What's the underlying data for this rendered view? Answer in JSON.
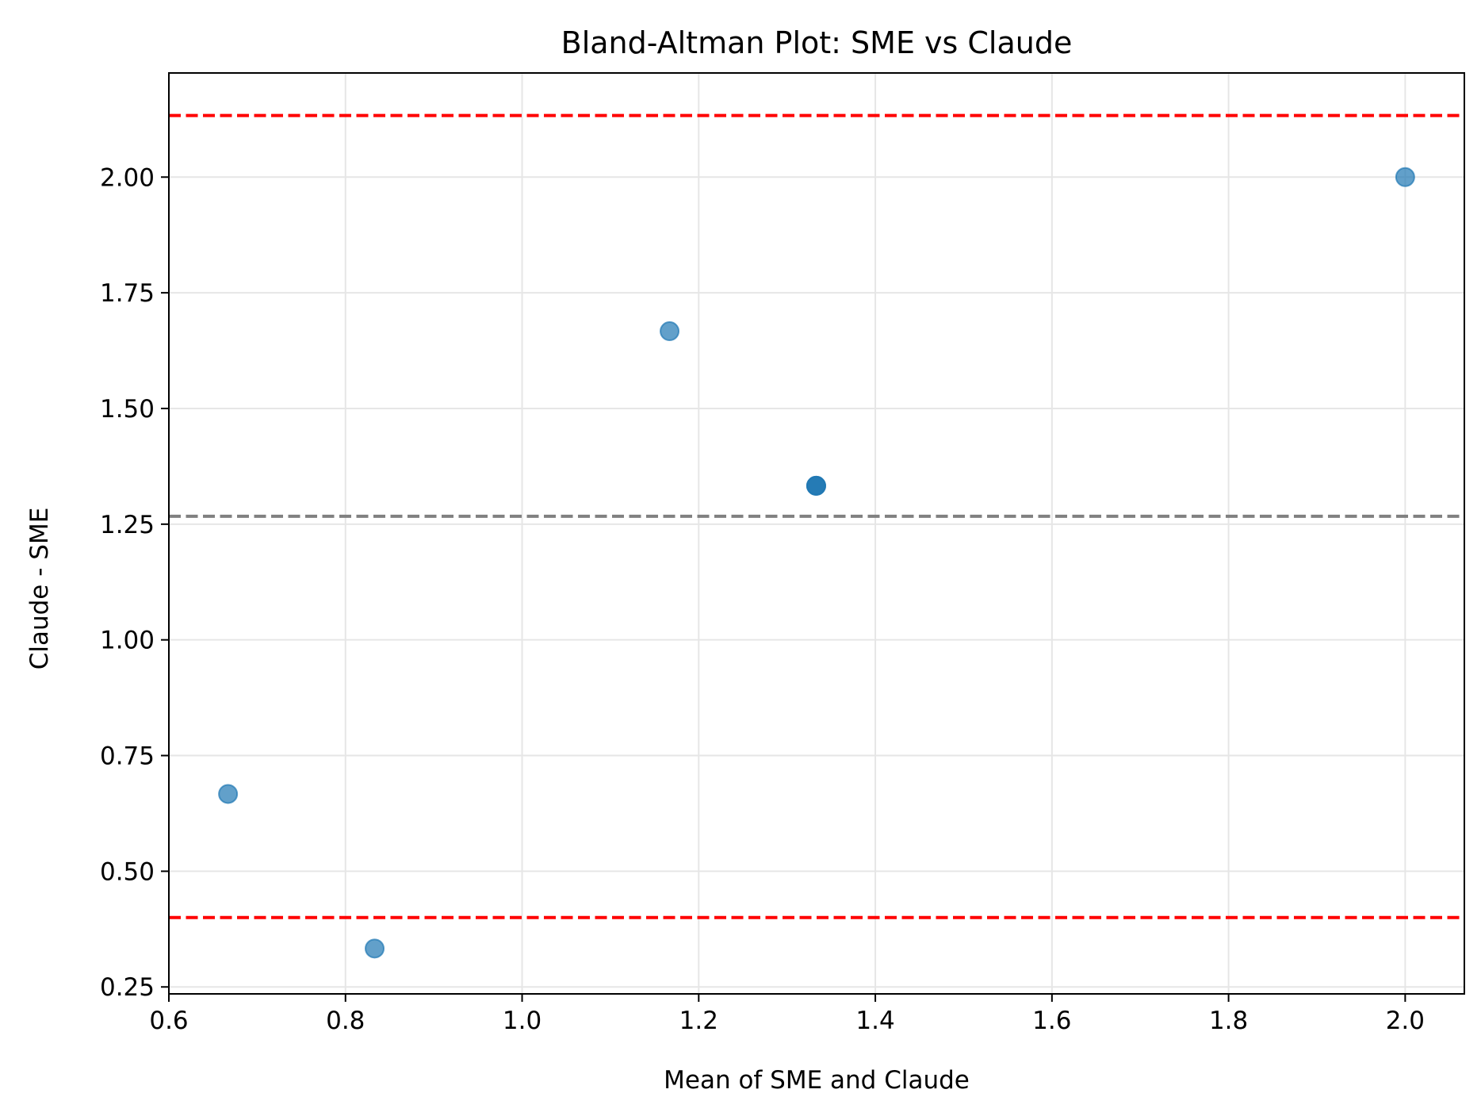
{
  "chart_data": {
    "type": "scatter",
    "title": "Bland-Altman Plot: SME vs Claude",
    "xlabel": "Mean of SME and Claude",
    "ylabel": "Claude - SME",
    "xlim": [
      0.6,
      2.067
    ],
    "ylim": [
      0.235,
      2.225
    ],
    "xticks": [
      0.6,
      0.8,
      1.0,
      1.2,
      1.4,
      1.6,
      1.8,
      2.0
    ],
    "xtick_labels": [
      "0.6",
      "0.8",
      "1.0",
      "1.2",
      "1.4",
      "1.6",
      "1.8",
      "2.0"
    ],
    "yticks": [
      0.25,
      0.5,
      0.75,
      1.0,
      1.25,
      1.5,
      1.75,
      2.0
    ],
    "ytick_labels": [
      "0.25",
      "0.50",
      "0.75",
      "1.00",
      "1.25",
      "1.50",
      "1.75",
      "2.00"
    ],
    "grid": true,
    "points": [
      {
        "x": 0.667,
        "y": 0.667
      },
      {
        "x": 0.833,
        "y": 0.333
      },
      {
        "x": 1.167,
        "y": 1.667
      },
      {
        "x": 1.333,
        "y": 1.333
      },
      {
        "x": 1.333,
        "y": 1.333
      },
      {
        "x": 1.333,
        "y": 1.333
      },
      {
        "x": 2.0,
        "y": 2.0
      }
    ],
    "reference_lines": [
      {
        "kind": "mean_difference",
        "y": 1.267,
        "color": "#808080",
        "style": "dashed"
      },
      {
        "kind": "upper_limit_of_agreement",
        "y": 2.133,
        "color": "#ff0000",
        "style": "dashed"
      },
      {
        "kind": "lower_limit_of_agreement",
        "y": 0.4,
        "color": "#ff0000",
        "style": "dashed"
      }
    ],
    "point_color": "#1f77b4",
    "point_opacity": 0.7
  }
}
